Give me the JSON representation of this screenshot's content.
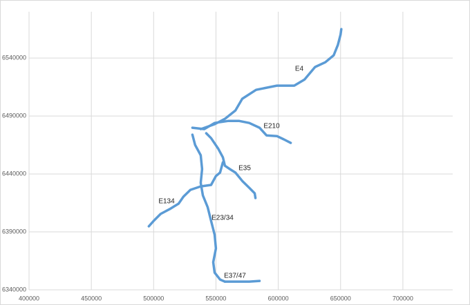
{
  "chart_data": {
    "type": "line",
    "xlim": [
      400000,
      740000
    ],
    "ylim": [
      6340000,
      6580000
    ],
    "xticks": [
      400000,
      450000,
      500000,
      550000,
      600000,
      650000,
      700000
    ],
    "yticks": [
      6340000,
      6390000,
      6440000,
      6490000,
      6540000
    ],
    "grid": true,
    "series": [
      {
        "name": "E4",
        "color": "#5b9bd5",
        "x": [
          537800,
          548900,
          557200,
          565600,
          571100,
          582200,
          598900,
          612800,
          621100,
          629500,
          637800,
          644500,
          647800,
          650000,
          650600
        ],
        "values": [
          6478700,
          6482900,
          6487600,
          6494800,
          6504900,
          6512600,
          6516200,
          6516200,
          6521500,
          6532300,
          6536400,
          6542400,
          6551300,
          6560200,
          6565000
        ]
      },
      {
        "name": "E210",
        "color": "#5b9bd5",
        "x": [
          531100,
          540600,
          548900,
          560000,
          568400,
          576700,
          585000,
          590600,
          598900,
          604500,
          610000
        ],
        "values": [
          6479900,
          6478700,
          6484000,
          6485800,
          6485800,
          6484000,
          6479900,
          6473300,
          6472700,
          6469800,
          6466800
        ]
      },
      {
        "name": "E35",
        "color": "#5b9bd5",
        "x": [
          542200,
          546100,
          551700,
          555600,
          557200,
          561100,
          565600,
          571100,
          576700,
          581100,
          581700
        ],
        "values": [
          6475100,
          6470900,
          6462000,
          6454300,
          6447100,
          6444200,
          6441200,
          6434000,
          6428100,
          6423300,
          6419200
        ]
      },
      {
        "name": "E134",
        "color": "#5b9bd5",
        "x": [
          496100,
          500000,
          505600,
          512800,
          520000,
          523900,
          529500,
          537800,
          546100,
          550000,
          553300,
          555600
        ],
        "values": [
          6394800,
          6399500,
          6405500,
          6409600,
          6414400,
          6420400,
          6426300,
          6429300,
          6430500,
          6438200,
          6441200,
          6450100
        ]
      },
      {
        "name": "E23/34",
        "color": "#5b9bd5",
        "x": [
          531100,
          533300,
          537800,
          538900,
          537800,
          539500,
          543300,
          546100,
          548900,
          550000,
          547800,
          548900,
          553300,
          557200
        ],
        "values": [
          6473900,
          6465000,
          6456100,
          6444200,
          6432300,
          6421500,
          6411400,
          6399500,
          6387600,
          6375700,
          6363800,
          6354900,
          6348900,
          6347100
        ]
      },
      {
        "name": "E37/47",
        "color": "#5b9bd5",
        "x": [
          557200,
          568400,
          576700,
          585000
        ],
        "values": [
          6347100,
          6347100,
          6347100,
          6347700
        ]
      }
    ]
  }
}
